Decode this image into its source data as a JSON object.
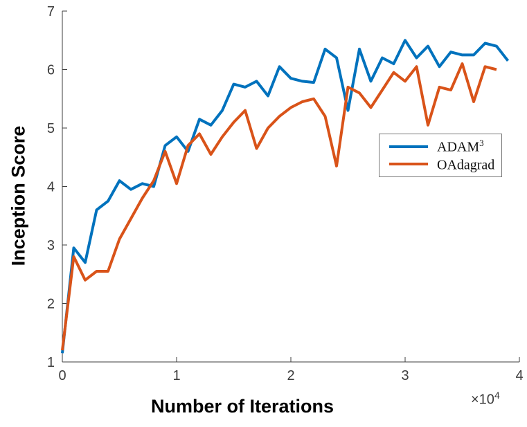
{
  "figure": {
    "background": "#ffffff",
    "axis_color": "#3d3d3d",
    "x_scale_label": "×10",
    "x_scale_exp": "4"
  },
  "legend": {
    "items": [
      {
        "label": "ADAM",
        "sup": "3",
        "color": "#0072BD"
      },
      {
        "label": "OAdagrad",
        "sup": "",
        "color": "#D95319"
      }
    ]
  },
  "chart_data": {
    "type": "line",
    "title": "",
    "xlabel": "Number of Iterations",
    "ylabel": "Inception Score",
    "x_units": "iterations ×10^4",
    "xlim": [
      0,
      4
    ],
    "ylim": [
      1,
      7
    ],
    "x_ticks": [
      0,
      1,
      2,
      3,
      4
    ],
    "y_ticks": [
      1,
      2,
      3,
      4,
      5,
      6,
      7
    ],
    "grid": false,
    "legend_position": "middle-right",
    "series": [
      {
        "name": "ADAM^3",
        "color": "#0072BD",
        "x": [
          0.0,
          0.1,
          0.2,
          0.3,
          0.4,
          0.5,
          0.6,
          0.7,
          0.8,
          0.9,
          1.0,
          1.1,
          1.2,
          1.3,
          1.4,
          1.5,
          1.6,
          1.7,
          1.8,
          1.9,
          2.0,
          2.1,
          2.2,
          2.3,
          2.4,
          2.5,
          2.6,
          2.7,
          2.8,
          2.9,
          3.0,
          3.1,
          3.2,
          3.3,
          3.4,
          3.5,
          3.6,
          3.7,
          3.8,
          3.9
        ],
        "values": [
          1.15,
          2.95,
          2.7,
          3.6,
          3.75,
          4.1,
          3.95,
          4.05,
          4.0,
          4.7,
          4.85,
          4.6,
          5.15,
          5.05,
          5.3,
          5.75,
          5.7,
          5.8,
          5.55,
          6.05,
          5.85,
          5.8,
          5.78,
          6.35,
          6.2,
          5.3,
          6.35,
          5.8,
          6.2,
          6.1,
          6.5,
          6.2,
          6.4,
          6.05,
          6.3,
          6.25,
          6.25,
          6.45,
          6.4,
          6.15
        ]
      },
      {
        "name": "OAdagrad",
        "color": "#D95319",
        "x": [
          0.0,
          0.1,
          0.2,
          0.3,
          0.4,
          0.5,
          0.6,
          0.7,
          0.8,
          0.9,
          1.0,
          1.1,
          1.2,
          1.3,
          1.4,
          1.5,
          1.6,
          1.7,
          1.8,
          1.9,
          2.0,
          2.1,
          2.2,
          2.3,
          2.4,
          2.5,
          2.6,
          2.7,
          2.8,
          2.9,
          3.0,
          3.1,
          3.2,
          3.3,
          3.4,
          3.5,
          3.6,
          3.7,
          3.8
        ],
        "values": [
          1.2,
          2.8,
          2.4,
          2.55,
          2.55,
          3.1,
          3.45,
          3.8,
          4.1,
          4.6,
          4.05,
          4.7,
          4.9,
          4.55,
          4.85,
          5.1,
          5.3,
          4.65,
          5.0,
          5.2,
          5.35,
          5.45,
          5.5,
          5.2,
          4.35,
          5.7,
          5.6,
          5.35,
          5.65,
          5.95,
          5.8,
          6.05,
          5.05,
          5.7,
          5.65,
          6.1,
          5.45,
          6.05,
          6.0
        ]
      }
    ]
  }
}
